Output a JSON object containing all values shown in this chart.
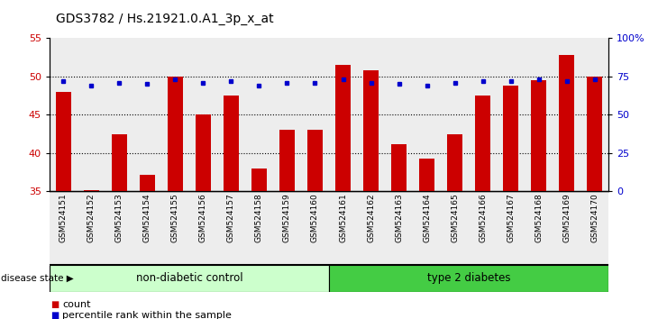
{
  "title": "GDS3782 / Hs.21921.0.A1_3p_x_at",
  "samples": [
    "GSM524151",
    "GSM524152",
    "GSM524153",
    "GSM524154",
    "GSM524155",
    "GSM524156",
    "GSM524157",
    "GSM524158",
    "GSM524159",
    "GSM524160",
    "GSM524161",
    "GSM524162",
    "GSM524163",
    "GSM524164",
    "GSM524165",
    "GSM524166",
    "GSM524167",
    "GSM524168",
    "GSM524169",
    "GSM524170"
  ],
  "counts": [
    48.0,
    35.2,
    42.5,
    37.2,
    50.0,
    45.0,
    47.5,
    38.0,
    43.0,
    43.0,
    51.5,
    50.8,
    41.2,
    39.3,
    42.5,
    47.5,
    48.8,
    49.5,
    52.8,
    50.0
  ],
  "percentiles": [
    48.0,
    46.5,
    47.5,
    46.8,
    48.5,
    47.5,
    48.0,
    46.5,
    47.3,
    47.3,
    48.5,
    47.5,
    47.0,
    46.5,
    47.5,
    48.0,
    48.0,
    48.5,
    48.2,
    48.5
  ],
  "non_diabetic_count": 10,
  "type2_count": 10,
  "ylim_left": [
    35,
    55
  ],
  "ylim_right": [
    0,
    100
  ],
  "yticks_left": [
    35,
    40,
    45,
    50,
    55
  ],
  "yticks_right": [
    0,
    25,
    50,
    75,
    100
  ],
  "ytick_labels_right": [
    "0",
    "25",
    "50",
    "75",
    "100%"
  ],
  "bar_color": "#cc0000",
  "dot_color": "#0000cc",
  "non_diabetic_color": "#ccffcc",
  "type2_color": "#44cc44",
  "group_label_color": "#000000",
  "background_color": "#ffffff",
  "disease_state_label": "disease state",
  "non_diabetic_label": "non-diabetic control",
  "type2_label": "type 2 diabetes",
  "legend_count": "count",
  "legend_percentile": "percentile rank within the sample",
  "title_fontsize": 10,
  "tick_label_fontsize": 6.5,
  "group_label_fontsize": 8.5,
  "legend_fontsize": 8,
  "gridline_yticks": [
    40,
    45,
    50
  ],
  "col_bg_color": "#d8d8d8"
}
